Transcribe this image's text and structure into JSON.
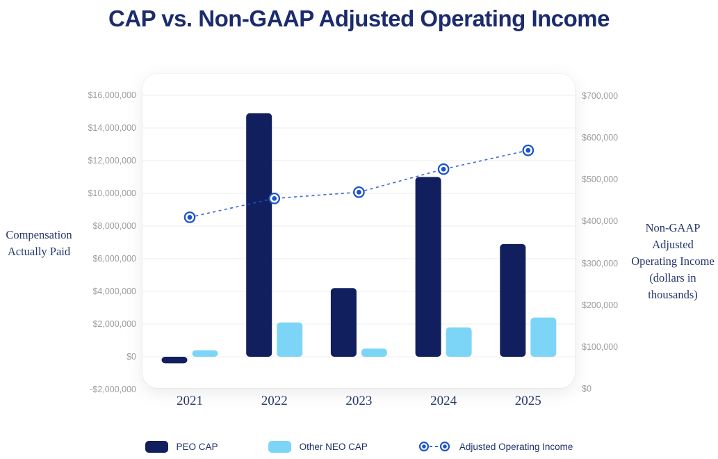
{
  "title": "CAP vs. Non-GAAP Adjusted Operating Income",
  "left_axis": {
    "title_lines": [
      "Compensation",
      "Actually Paid"
    ],
    "ticks": [
      "$16,000,000",
      "$14,000,000",
      "$12,000,000",
      "$10,000,000",
      "$8,000,000",
      "$6,000,000",
      "$4,000,000",
      "$2,000,000",
      "$0",
      "-$2,000,000"
    ]
  },
  "right_axis": {
    "title_lines": [
      "Non-GAAP",
      "Adjusted",
      "Operating Income",
      "(dollars in",
      "thousands)"
    ],
    "ticks": [
      "$700,000",
      "$600,000",
      "$500,000",
      "$400,000",
      "$300,000",
      "$200,000",
      "$100,000",
      "$0"
    ]
  },
  "legend": [
    {
      "label": "PEO CAP",
      "type": "bar",
      "color": "#121f5e"
    },
    {
      "label": "Other NEO CAP",
      "type": "bar",
      "color": "#7cd5f6"
    },
    {
      "label": "Adjusted Operating Income",
      "type": "line",
      "color": "#1d54cc"
    }
  ],
  "colors": {
    "peo_bar": "#121f5e",
    "neo_bar": "#7cd5f6",
    "line": "#1d54cc",
    "title_text": "#1c2b6d",
    "serif_text": "#24356b",
    "tick_text": "#9c9ca0",
    "gridline": "#ededed"
  },
  "chart_data": {
    "type": "bar",
    "title": "CAP vs. Non-GAAP Adjusted Operating Income",
    "categories": [
      "2021",
      "2022",
      "2023",
      "2024",
      "2025"
    ],
    "series": [
      {
        "name": "PEO CAP",
        "type": "bar",
        "axis": "left",
        "color": "#121f5e",
        "values": [
          -400000,
          14900000,
          4200000,
          11000000,
          6900000
        ]
      },
      {
        "name": "Other NEO CAP",
        "type": "bar",
        "axis": "left",
        "color": "#7cd5f6",
        "values": [
          400000,
          2100000,
          500000,
          1800000,
          2400000
        ]
      },
      {
        "name": "Adjusted Operating Income",
        "type": "line",
        "axis": "right",
        "color": "#1d54cc",
        "values": [
          410000,
          455000,
          470000,
          525000,
          570000
        ]
      }
    ],
    "left_axis": {
      "label": "Compensation Actually Paid",
      "range": [
        -2000000,
        16000000
      ],
      "tick_step": 2000000
    },
    "right_axis": {
      "label": "Non-GAAP Adjusted Operating Income (dollars in thousands)",
      "range": [
        0,
        700000
      ],
      "tick_step": 100000
    },
    "grid": true,
    "legend_position": "bottom"
  }
}
